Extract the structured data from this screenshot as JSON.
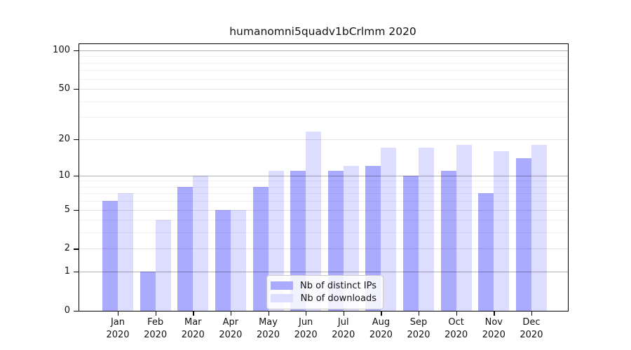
{
  "title": "humanomni5quadv1bCrlmm 2020",
  "colors": {
    "distinct_ips": "#aaaaff",
    "downloads": "#ddddff",
    "axis": "#000000",
    "background": "#ffffff"
  },
  "chart_data": {
    "type": "bar",
    "title": "humanomni5quadv1bCrlmm 2020",
    "categories": [
      "Jan 2020",
      "Feb 2020",
      "Mar 2020",
      "Apr 2020",
      "May 2020",
      "Jun 2020",
      "Jul 2020",
      "Aug 2020",
      "Sep 2020",
      "Oct 2020",
      "Nov 2020",
      "Dec 2020"
    ],
    "series": [
      {
        "name": "Nb of distinct IPs",
        "color": "#aaaaff",
        "values": [
          6,
          1,
          8,
          5,
          8,
          11,
          11,
          12,
          10,
          11,
          7,
          14
        ]
      },
      {
        "name": "Nb of downloads",
        "color": "#ddddff",
        "values": [
          7,
          4,
          10,
          5,
          11,
          23,
          12,
          17,
          17,
          18,
          16,
          18
        ]
      }
    ],
    "yscale": "log10(1+x)",
    "ylim": [
      0,
      100
    ],
    "y_tick_labels": [
      100,
      50,
      20,
      10,
      5,
      2,
      1,
      0
    ],
    "y_major_gridlines": [
      1,
      10,
      100
    ],
    "y_mid_gridlines": [
      2,
      5,
      20,
      50
    ],
    "y_minor_gridlines": [
      3,
      4,
      6,
      7,
      8,
      9,
      30,
      40,
      60,
      70,
      80,
      90
    ],
    "grid": true,
    "legend_position": "lower center"
  }
}
